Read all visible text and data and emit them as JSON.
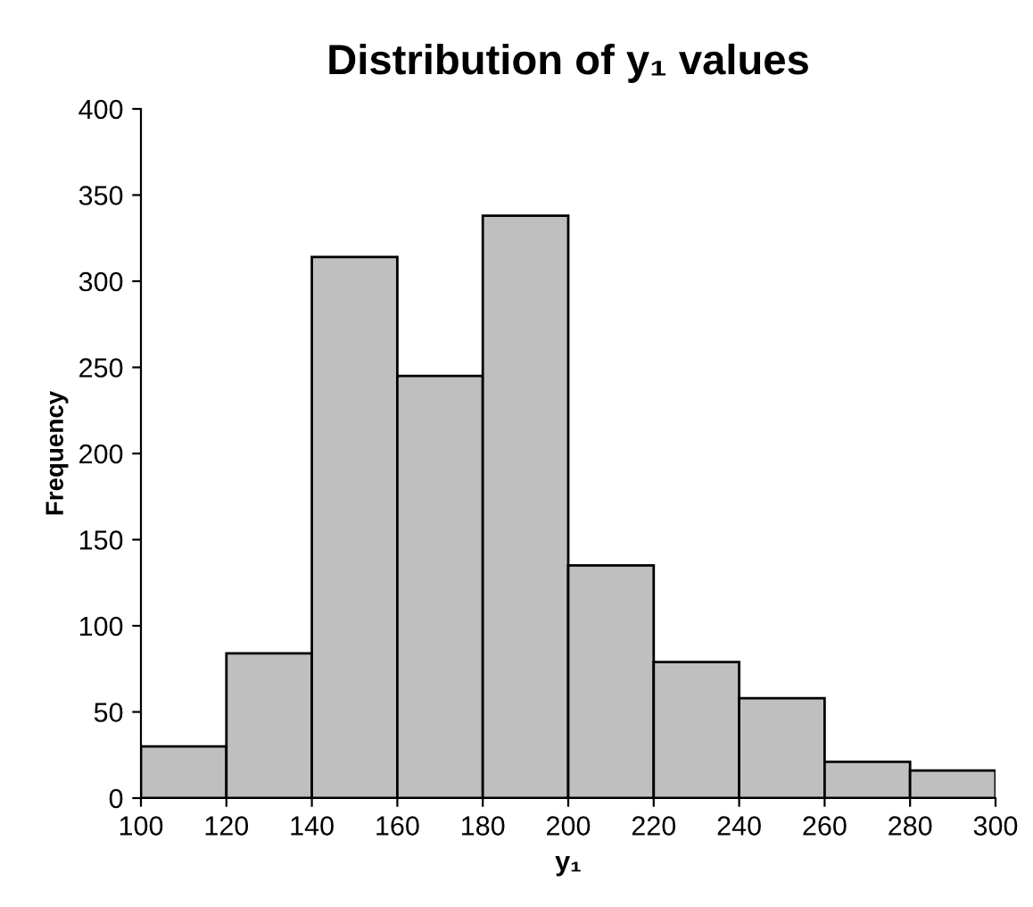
{
  "chart_data": {
    "type": "histogram",
    "title": "Distribution of y₁ values",
    "xlabel": "y₁",
    "ylabel": "Frequency",
    "bins": [
      100,
      120,
      140,
      160,
      180,
      200,
      220,
      240,
      260,
      280,
      300
    ],
    "values": [
      30,
      84,
      314,
      245,
      338,
      135,
      79,
      58,
      21,
      16
    ],
    "color": "#bfbfbf",
    "xlim": [
      100,
      300
    ],
    "xticks": [
      100,
      120,
      140,
      160,
      180,
      200,
      220,
      240,
      260,
      280,
      300
    ],
    "ylim": [
      0,
      400
    ],
    "yticks": [
      0,
      50,
      100,
      150,
      200,
      250,
      300,
      350,
      400
    ],
    "grid": false,
    "legend": false
  }
}
